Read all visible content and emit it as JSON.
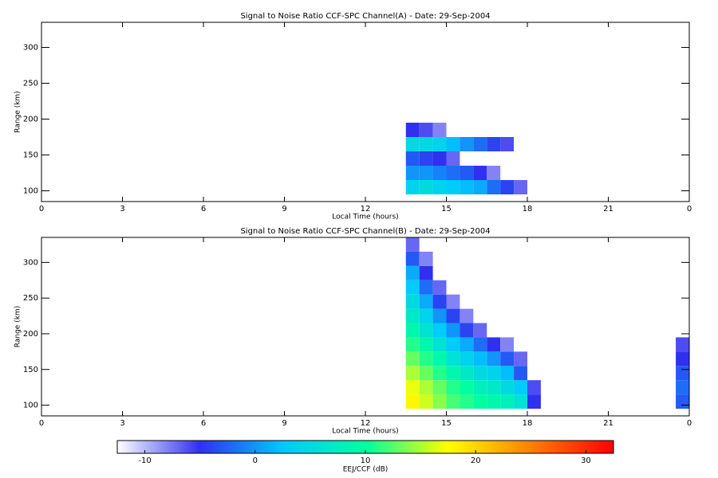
{
  "chart_data": [
    {
      "type": "heatmap",
      "title": "Signal to Noise Ratio CCF-SPC Channel(A) - Date: 29-Sep-2004",
      "xlabel": "Local Time (hours)",
      "ylabel": "Range (km)",
      "xlim": [
        0,
        24
      ],
      "ylim": [
        85,
        335
      ],
      "xticks": [
        0,
        3,
        6,
        9,
        12,
        15,
        18,
        21,
        {
          "value": 24,
          "label": "0"
        }
      ],
      "yticks": [
        100,
        150,
        200,
        250,
        300
      ],
      "xbins": [
        13.5,
        14,
        14.5,
        15,
        15.5,
        16,
        16.5,
        17,
        17.5,
        18,
        18.5,
        19,
        19.5,
        20,
        20.5,
        21,
        21.5,
        22,
        22.5,
        23,
        23.5,
        24
      ],
      "ybins": [
        95,
        115,
        135,
        155,
        175,
        195,
        215,
        235,
        255,
        275,
        295,
        315,
        335
      ],
      "z": [
        [
          4,
          5,
          4,
          3,
          2,
          1,
          -2,
          -4,
          -7,
          null,
          null,
          null,
          null,
          null,
          null,
          null,
          null,
          null,
          null,
          null,
          null
        ],
        [
          0,
          0,
          -1,
          -2,
          -3,
          -5,
          -8,
          null,
          null,
          null,
          null,
          null,
          null,
          null,
          null,
          null,
          null,
          null,
          null,
          null,
          null
        ],
        [
          -3,
          -4,
          -5,
          -7,
          null,
          null,
          null,
          null,
          null,
          null,
          null,
          null,
          null,
          null,
          null,
          null,
          null,
          null,
          null,
          null,
          null
        ],
        [
          5,
          5,
          4,
          2,
          0,
          -2,
          -4,
          -6,
          null,
          null,
          null,
          null,
          null,
          null,
          null,
          null,
          null,
          null,
          null,
          null,
          null
        ],
        [
          -5,
          -6,
          -8,
          null,
          null,
          null,
          null,
          null,
          null,
          null,
          null,
          null,
          null,
          null,
          null,
          null,
          null,
          null,
          null,
          null,
          null
        ],
        [
          null,
          null,
          null,
          null,
          null,
          null,
          null,
          null,
          null,
          null,
          null,
          null,
          null,
          null,
          null,
          null,
          null,
          null,
          null,
          null,
          null
        ],
        [
          null,
          null,
          null,
          null,
          null,
          null,
          null,
          null,
          null,
          null,
          null,
          null,
          null,
          null,
          null,
          null,
          null,
          null,
          null,
          null,
          null
        ],
        [
          null,
          null,
          null,
          null,
          null,
          null,
          null,
          null,
          null,
          null,
          null,
          null,
          null,
          null,
          null,
          null,
          null,
          null,
          null,
          null,
          null
        ],
        [
          null,
          null,
          null,
          null,
          null,
          null,
          null,
          null,
          null,
          null,
          null,
          null,
          null,
          null,
          null,
          null,
          null,
          null,
          null,
          null,
          null
        ],
        [
          null,
          null,
          null,
          null,
          null,
          null,
          null,
          null,
          null,
          null,
          null,
          null,
          null,
          null,
          null,
          null,
          null,
          null,
          null,
          null,
          null
        ],
        [
          null,
          null,
          null,
          null,
          null,
          null,
          null,
          null,
          null,
          null,
          null,
          null,
          null,
          null,
          null,
          null,
          null,
          null,
          null,
          null,
          null
        ],
        [
          null,
          null,
          null,
          null,
          null,
          null,
          null,
          null,
          null,
          null,
          null,
          null,
          null,
          null,
          null,
          null,
          null,
          null,
          null,
          null,
          null
        ]
      ]
    },
    {
      "type": "heatmap",
      "title": "Signal to Noise Ratio CCF-SPC Channel(B) - Date: 29-Sep-2004",
      "xlabel": "Local Time (hours)",
      "ylabel": "Range (km)",
      "xlim": [
        0,
        24
      ],
      "ylim": [
        85,
        335
      ],
      "xticks": [
        0,
        3,
        6,
        9,
        12,
        15,
        18,
        21,
        {
          "value": 24,
          "label": "0"
        }
      ],
      "yticks": [
        100,
        150,
        200,
        250,
        300
      ],
      "xbins": [
        13.5,
        14,
        14.5,
        15,
        15.5,
        16,
        16.5,
        17,
        17.5,
        18,
        18.5,
        19,
        19.5,
        20,
        20.5,
        21,
        21.5,
        22,
        22.5,
        23,
        23.5,
        24
      ],
      "ybins": [
        95,
        115,
        135,
        155,
        175,
        195,
        215,
        235,
        255,
        275,
        295,
        315,
        335
      ],
      "z": [
        [
          18,
          16,
          14,
          12,
          11,
          10,
          9,
          8,
          6,
          -5,
          null,
          null,
          null,
          null,
          null,
          null,
          null,
          null,
          null,
          null,
          -3
        ],
        [
          17,
          15,
          13,
          11,
          10,
          8,
          7,
          5,
          3,
          -6,
          null,
          null,
          null,
          null,
          null,
          null,
          null,
          null,
          null,
          null,
          -2
        ],
        [
          15,
          13,
          11,
          9,
          7,
          5,
          4,
          2,
          -3,
          null,
          null,
          null,
          null,
          null,
          null,
          null,
          null,
          null,
          null,
          null,
          -3
        ],
        [
          13,
          11,
          9,
          6,
          4,
          2,
          0,
          -3,
          -7,
          null,
          null,
          null,
          null,
          null,
          null,
          null,
          null,
          null,
          null,
          null,
          -5
        ],
        [
          11,
          9,
          6,
          3,
          1,
          -2,
          -5,
          -8,
          null,
          null,
          null,
          null,
          null,
          null,
          null,
          null,
          null,
          null,
          null,
          null,
          -6
        ],
        [
          9,
          6,
          3,
          0,
          -4,
          -7,
          null,
          null,
          null,
          null,
          null,
          null,
          null,
          null,
          null,
          null,
          null,
          null,
          null,
          null,
          null
        ],
        [
          7,
          4,
          0,
          -4,
          -8,
          null,
          null,
          null,
          null,
          null,
          null,
          null,
          null,
          null,
          null,
          null,
          null,
          null,
          null,
          null,
          null
        ],
        [
          5,
          1,
          -4,
          -8,
          null,
          null,
          null,
          null,
          null,
          null,
          null,
          null,
          null,
          null,
          null,
          null,
          null,
          null,
          null,
          null,
          null
        ],
        [
          3,
          -2,
          -7,
          null,
          null,
          null,
          null,
          null,
          null,
          null,
          null,
          null,
          null,
          null,
          null,
          null,
          null,
          null,
          null,
          null,
          null
        ],
        [
          1,
          -5,
          null,
          null,
          null,
          null,
          null,
          null,
          null,
          null,
          null,
          null,
          null,
          null,
          null,
          null,
          null,
          null,
          null,
          null,
          null
        ],
        [
          -3,
          -8,
          null,
          null,
          null,
          null,
          null,
          null,
          null,
          null,
          null,
          null,
          null,
          null,
          null,
          null,
          null,
          null,
          null,
          null,
          null
        ],
        [
          -7,
          null,
          null,
          null,
          null,
          null,
          null,
          null,
          null,
          null,
          null,
          null,
          null,
          null,
          null,
          null,
          null,
          null,
          null,
          null,
          null
        ]
      ]
    },
    {
      "type": "colorbar",
      "label": "EEJ/CCF (dB)",
      "lim": [
        -12.5,
        32.5
      ],
      "ticks": [
        -10,
        0,
        10,
        20,
        30
      ],
      "colors": [
        "#ffffff",
        "#3030f0",
        "#00c8ff",
        "#00ffa0",
        "#ffff00",
        "#ff8000",
        "#ff0000"
      ]
    }
  ]
}
